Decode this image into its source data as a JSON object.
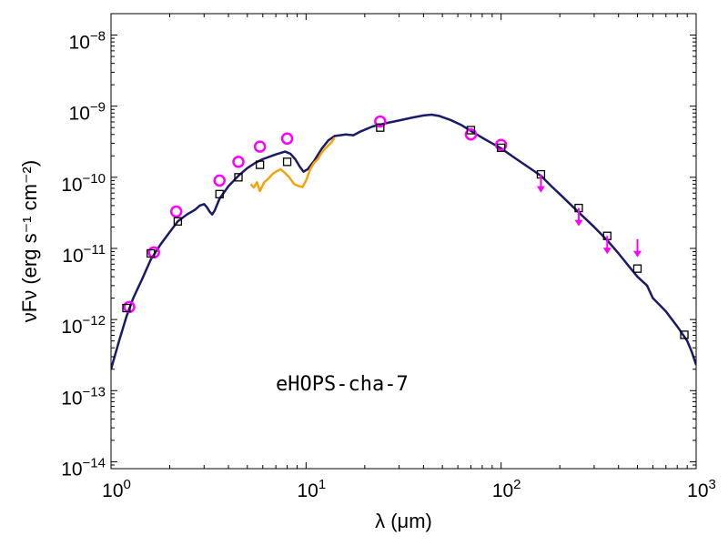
{
  "chart_data": {
    "type": "line",
    "title": "",
    "xlabel": "λ (μm)",
    "ylabel": "νFν (erg s⁻¹ cm⁻²)",
    "xscale": "log",
    "yscale": "log",
    "xlim": [
      1,
      1000
    ],
    "ylim": [
      8e-15,
      2e-08
    ],
    "x_ticks": [
      {
        "value": 1,
        "base": "10",
        "exp": "0"
      },
      {
        "value": 10,
        "base": "10",
        "exp": "1"
      },
      {
        "value": 100,
        "base": "10",
        "exp": "2"
      },
      {
        "value": 1000,
        "base": "10",
        "exp": "3"
      }
    ],
    "y_ticks": [
      {
        "value": 1e-14,
        "base": "10",
        "exp": "−14"
      },
      {
        "value": 1e-13,
        "base": "10",
        "exp": "−13"
      },
      {
        "value": 1e-12,
        "base": "10",
        "exp": "−12"
      },
      {
        "value": 1e-11,
        "base": "10",
        "exp": "−11"
      },
      {
        "value": 1e-10,
        "base": "10",
        "exp": "−10"
      },
      {
        "value": 1e-09,
        "base": "10",
        "exp": "−9"
      },
      {
        "value": 1e-08,
        "base": "10",
        "exp": "−8"
      }
    ],
    "annotation": "eHOPS-cha-7",
    "grid": false,
    "legend": "none",
    "series": [
      {
        "kind": "line",
        "color": "#1a1a66",
        "points": [
          [
            1.0,
            2e-13
          ],
          [
            1.1,
            5e-13
          ],
          [
            1.2,
            1.1e-12
          ],
          [
            1.3,
            2e-12
          ],
          [
            1.45,
            3.8e-12
          ],
          [
            1.6,
            7e-12
          ],
          [
            1.8,
            1.15e-11
          ],
          [
            2.0,
            1.7e-11
          ],
          [
            2.2,
            2.4e-11
          ],
          [
            2.45,
            3e-11
          ],
          [
            2.7,
            3.5e-11
          ],
          [
            2.85,
            4e-11
          ],
          [
            3.0,
            4.2e-11
          ],
          [
            3.1,
            3.8e-11
          ],
          [
            3.2,
            3.3e-11
          ],
          [
            3.3,
            3e-11
          ],
          [
            3.4,
            3.4e-11
          ],
          [
            3.6,
            5e-11
          ],
          [
            4.0,
            7.5e-11
          ],
          [
            4.5,
            1.05e-10
          ],
          [
            5.0,
            1.35e-10
          ],
          [
            5.5,
            1.6e-10
          ],
          [
            6.0,
            1.8e-10
          ],
          [
            7.0,
            2.1e-10
          ],
          [
            7.8,
            2.3e-10
          ],
          [
            8.3,
            2.15e-10
          ],
          [
            8.8,
            1.8e-10
          ],
          [
            9.3,
            1.4e-10
          ],
          [
            9.7,
            1.2e-10
          ],
          [
            10.2,
            1.3e-10
          ],
          [
            11.0,
            1.7e-10
          ],
          [
            12.0,
            2.5e-10
          ],
          [
            13.0,
            3.3e-10
          ],
          [
            14.0,
            3.8e-10
          ],
          [
            16.0,
            4e-10
          ],
          [
            17.5,
            3.9e-10
          ],
          [
            19.0,
            4.4e-10
          ],
          [
            22.0,
            5.2e-10
          ],
          [
            26.0,
            5.8e-10
          ],
          [
            30.0,
            6.3e-10
          ],
          [
            35.0,
            6.9e-10
          ],
          [
            40.0,
            7.4e-10
          ],
          [
            44.0,
            7.6e-10
          ],
          [
            48.0,
            7.3e-10
          ],
          [
            55.0,
            6.4e-10
          ],
          [
            62.0,
            5.5e-10
          ],
          [
            70.0,
            4.5e-10
          ],
          [
            80.0,
            3.6e-10
          ],
          [
            90.0,
            3e-10
          ],
          [
            100.0,
            2.55e-10
          ],
          [
            120.0,
            1.8e-10
          ],
          [
            140.0,
            1.35e-10
          ],
          [
            160.0,
            1.05e-10
          ],
          [
            180.0,
            7.6e-11
          ],
          [
            200.0,
            5.8e-11
          ],
          [
            230.0,
            4e-11
          ],
          [
            260.0,
            2.9e-11
          ],
          [
            300.0,
            2e-11
          ],
          [
            350.0,
            1.3e-11
          ],
          [
            400.0,
            8.5e-12
          ],
          [
            450.0,
            5.7e-12
          ],
          [
            500.0,
            4e-12
          ],
          [
            560.0,
            3e-12
          ],
          [
            600.0,
            2e-12
          ],
          [
            650.0,
            1.6e-12
          ],
          [
            700.0,
            1.3e-12
          ],
          [
            800.0,
            8e-13
          ],
          [
            900.0,
            5e-13
          ],
          [
            950.0,
            3.5e-13
          ],
          [
            1000.0,
            2.3e-13
          ]
        ]
      },
      {
        "kind": "line",
        "color": "#f5a30a",
        "points": [
          [
            5.2,
            8e-11
          ],
          [
            5.4,
            7.2e-11
          ],
          [
            5.6,
            8.5e-11
          ],
          [
            5.8,
            6.4e-11
          ],
          [
            6.1,
            8.5e-11
          ],
          [
            6.4,
            9.5e-11
          ],
          [
            6.7,
            1.1e-10
          ],
          [
            7.0,
            1.2e-10
          ],
          [
            7.4,
            1.3e-10
          ],
          [
            7.8,
            1.15e-10
          ],
          [
            8.2,
            1e-10
          ],
          [
            8.7,
            8e-11
          ],
          [
            9.2,
            7.5e-11
          ],
          [
            9.6,
            7.3e-11
          ],
          [
            10.0,
            9e-11
          ],
          [
            10.5,
            1.3e-10
          ],
          [
            11.0,
            1.6e-10
          ],
          [
            11.5,
            1.8e-10
          ],
          [
            12.0,
            2.2e-10
          ],
          [
            12.5,
            2.5e-10
          ],
          [
            13.0,
            2.8e-10
          ],
          [
            13.5,
            3.1e-10
          ],
          [
            14.0,
            3.6e-10
          ]
        ]
      },
      {
        "kind": "open-circle",
        "color": "#ff00ff",
        "points": [
          [
            1.24,
            1.5e-12
          ],
          [
            1.66,
            8.8e-12
          ],
          [
            2.16,
            3.3e-11
          ],
          [
            3.6,
            9e-11
          ],
          [
            4.5,
            1.65e-10
          ],
          [
            5.8,
            2.7e-10
          ],
          [
            8.0,
            3.5e-10
          ],
          [
            24.0,
            6.1e-10
          ],
          [
            70.0,
            4e-10
          ],
          [
            100.0,
            2.85e-10
          ]
        ]
      },
      {
        "kind": "open-square",
        "color": "#000000",
        "points": [
          [
            1.2,
            1.45e-12
          ],
          [
            1.6,
            8.5e-12
          ],
          [
            2.2,
            2.4e-11
          ],
          [
            3.6,
            5.8e-11
          ],
          [
            4.5,
            1e-10
          ],
          [
            5.8,
            1.5e-10
          ],
          [
            8.0,
            1.65e-10
          ],
          [
            24.0,
            5e-10
          ],
          [
            70.0,
            4.6e-10
          ],
          [
            100.0,
            2.6e-10
          ],
          [
            160.0,
            1.1e-10
          ],
          [
            250.0,
            3.7e-11
          ],
          [
            350.0,
            1.5e-11
          ],
          [
            500.0,
            5.2e-12
          ],
          [
            870.0,
            6.1e-13
          ]
        ]
      },
      {
        "kind": "upper-limit-arrow",
        "color": "#ff00ff",
        "points": [
          [
            160.0,
            1.1e-10
          ],
          [
            250.0,
            3.7e-11
          ],
          [
            350.0,
            1.5e-11
          ],
          [
            500.0,
            1.35e-11
          ]
        ]
      }
    ]
  }
}
